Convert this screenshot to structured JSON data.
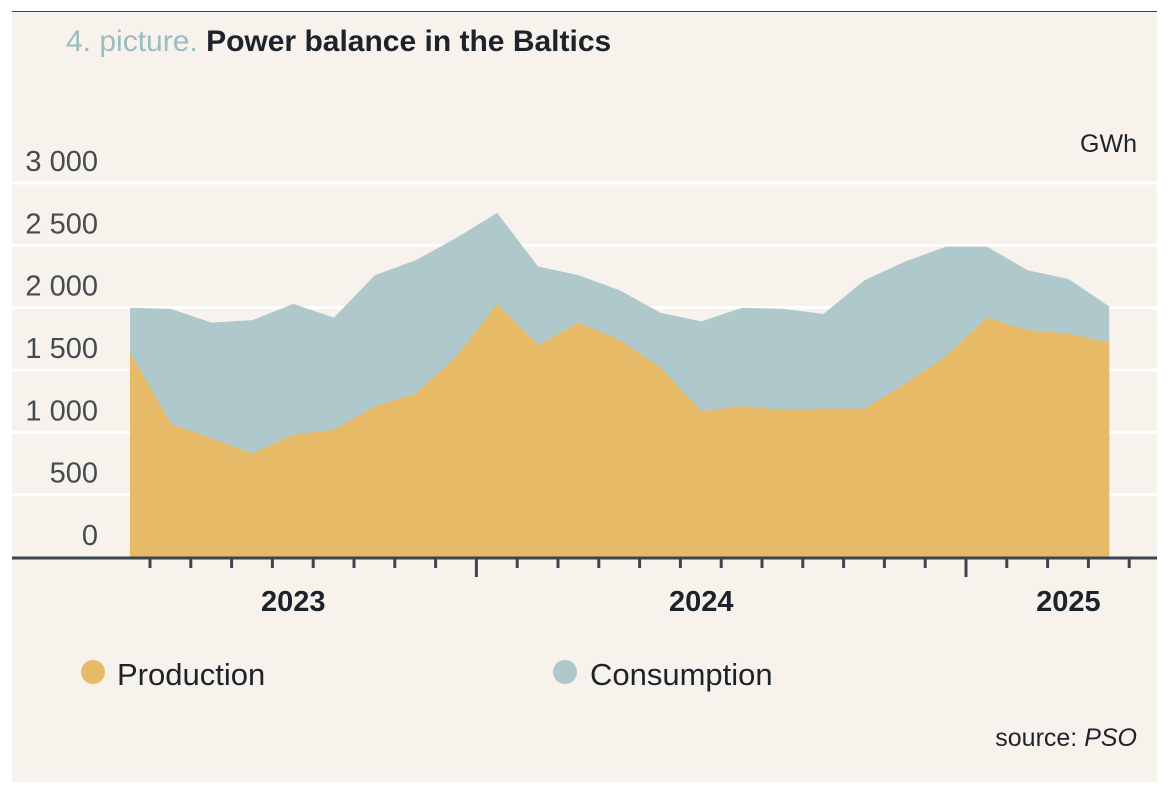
{
  "title": {
    "prefix": "4. picture.",
    "main": "Power balance in the Baltics"
  },
  "source": {
    "label": "source:",
    "name": "PSO"
  },
  "colors": {
    "production": "#e6ba66",
    "consumption": "#afc8cb",
    "grid": "#ffffff",
    "axis": "#3b4450"
  },
  "chart_data": {
    "type": "area",
    "title": "Power balance in the Baltics",
    "unit": "GWh",
    "ylim": [
      0,
      3000
    ],
    "yticks": [
      0,
      500,
      1000,
      1500,
      2000,
      2500,
      3000
    ],
    "ytick_labels": [
      "0",
      "500",
      "1 000",
      "1 500",
      "2 000",
      "2 500",
      "3 000"
    ],
    "year_labels": [
      {
        "label": "2023",
        "month_index": 4
      },
      {
        "label": "2024",
        "month_index": 14
      },
      {
        "label": "2025",
        "month_index": 23
      }
    ],
    "grid": true,
    "legend_position": "bottom",
    "series": [
      {
        "name": "Consumption",
        "values": [
          2000,
          1990,
          1880,
          1900,
          2030,
          1920,
          2260,
          2380,
          2560,
          2760,
          2330,
          2260,
          2140,
          1960,
          1890,
          2000,
          1990,
          1950,
          2220,
          2370,
          2490,
          2490,
          2300,
          2230,
          2010
        ]
      },
      {
        "name": "Production",
        "values": [
          1640,
          1070,
          950,
          830,
          980,
          1020,
          1210,
          1310,
          1610,
          2030,
          1700,
          1880,
          1740,
          1520,
          1170,
          1210,
          1180,
          1190,
          1190,
          1390,
          1610,
          1920,
          1820,
          1790,
          1720
        ]
      }
    ]
  }
}
